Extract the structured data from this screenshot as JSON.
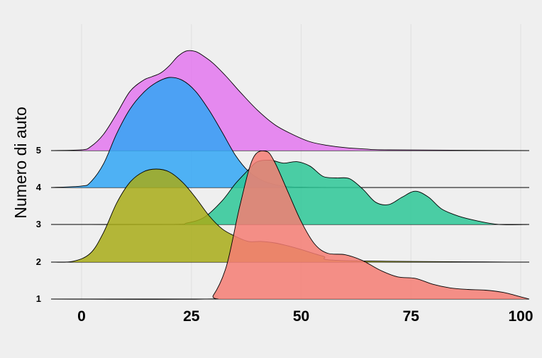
{
  "chart_data": {
    "type": "area",
    "ylabel": "Numero di auto",
    "xlabel": "",
    "xlim": [
      -7,
      102
    ],
    "x_ticks": [
      0,
      25,
      50,
      75,
      100
    ],
    "x_tick_labels": [
      "0",
      "25",
      "50",
      "75",
      "100"
    ],
    "y_tick_labels": [
      "1",
      "2",
      "3",
      "4",
      "5"
    ],
    "grid": "vertical gridlines at x ticks",
    "series": [
      {
        "category": "5",
        "color": "#e377ef",
        "x": [
          -7,
          0,
          2,
          5,
          8,
          11,
          14,
          16,
          18,
          20,
          22,
          24,
          26,
          28,
          30,
          33,
          36,
          40,
          44,
          48,
          52,
          56,
          60,
          65,
          70,
          102
        ],
        "y": [
          0,
          0.01,
          0.05,
          0.22,
          0.5,
          0.8,
          0.95,
          1.0,
          1.05,
          1.15,
          1.28,
          1.35,
          1.34,
          1.27,
          1.18,
          1.0,
          0.8,
          0.55,
          0.35,
          0.22,
          0.12,
          0.07,
          0.04,
          0.02,
          0.01,
          0
        ]
      },
      {
        "category": "4",
        "color": "#31a6f4",
        "x": [
          -7,
          0,
          2,
          5,
          8,
          11,
          14,
          17,
          20,
          23,
          26,
          29,
          32,
          35,
          38,
          41,
          44,
          47,
          50,
          60,
          102
        ],
        "y": [
          0,
          0.02,
          0.07,
          0.32,
          0.73,
          1.06,
          1.28,
          1.42,
          1.49,
          1.45,
          1.3,
          1.05,
          0.75,
          0.44,
          0.22,
          0.1,
          0.04,
          0.01,
          0.005,
          0,
          0
        ]
      },
      {
        "category": "3",
        "color": "#2dc797",
        "x": [
          -7,
          20,
          24,
          28,
          32,
          35,
          38,
          40,
          43,
          46,
          49,
          52,
          55,
          58,
          61,
          64,
          67,
          70,
          73,
          76,
          79,
          82,
          86,
          90,
          95,
          102
        ],
        "y": [
          0,
          0,
          0.02,
          0.1,
          0.32,
          0.55,
          0.74,
          0.85,
          0.87,
          0.83,
          0.85,
          0.79,
          0.65,
          0.63,
          0.62,
          0.48,
          0.3,
          0.27,
          0.37,
          0.45,
          0.37,
          0.21,
          0.11,
          0.05,
          0,
          0
        ]
      },
      {
        "category": "2",
        "color": "#a8ab17",
        "x": [
          -7,
          -2,
          2,
          5,
          8,
          11,
          14,
          17,
          20,
          23,
          26,
          29,
          32,
          35,
          38,
          41,
          44,
          47,
          50,
          55,
          60,
          102
        ],
        "y": [
          0,
          0.01,
          0.12,
          0.4,
          0.8,
          1.08,
          1.22,
          1.26,
          1.22,
          1.08,
          0.87,
          0.63,
          0.45,
          0.35,
          0.28,
          0.28,
          0.26,
          0.22,
          0.17,
          0.08,
          0.02,
          0
        ]
      },
      {
        "category": "1",
        "color": "#f47c73",
        "x": [
          -7,
          28,
          30,
          33,
          36,
          39,
          42,
          44,
          47,
          50,
          53,
          56,
          60,
          64,
          68,
          72,
          76,
          80,
          84,
          88,
          92,
          96,
          100,
          102
        ],
        "y": [
          0,
          0,
          0.05,
          0.45,
          1.25,
          1.9,
          2.0,
          1.85,
          1.45,
          1.05,
          0.75,
          0.62,
          0.6,
          0.52,
          0.39,
          0.3,
          0.28,
          0.2,
          0.15,
          0.13,
          0.12,
          0.09,
          0.03,
          0
        ]
      }
    ]
  }
}
